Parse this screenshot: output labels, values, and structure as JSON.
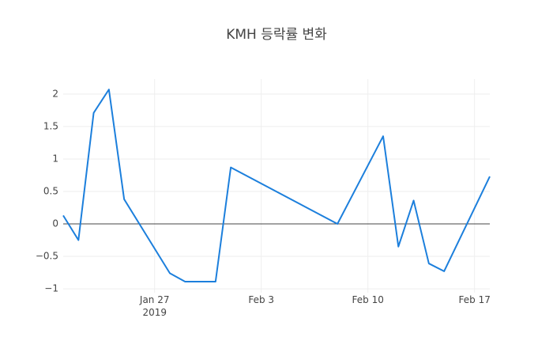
{
  "chart_data": {
    "type": "line",
    "title": "KMH 등락률 변화",
    "x": [
      "2019-01-21",
      "2019-01-22",
      "2019-01-23",
      "2019-01-24",
      "2019-01-25",
      "2019-01-28",
      "2019-01-29",
      "2019-01-30",
      "2019-01-31",
      "2019-02-01",
      "2019-02-08",
      "2019-02-11",
      "2019-02-12",
      "2019-02-13",
      "2019-02-14",
      "2019-02-15",
      "2019-02-18"
    ],
    "series": [
      {
        "name": "KMH",
        "color": "#1c7fdc",
        "values": [
          0.13,
          -0.25,
          1.71,
          2.07,
          0.38,
          -0.76,
          -0.89,
          -0.89,
          -0.89,
          0.87,
          0.0,
          1.35,
          -0.35,
          0.36,
          -0.61,
          -0.73,
          0.73
        ]
      }
    ],
    "xlim": [
      "2019-01-21",
      "2019-02-18"
    ],
    "xticks": [
      {
        "value": "2019-01-27",
        "label": "Jan 27\n2019"
      },
      {
        "value": "2019-02-03",
        "label": "Feb 3"
      },
      {
        "value": "2019-02-10",
        "label": "Feb 10"
      },
      {
        "value": "2019-02-17",
        "label": "Feb 17"
      }
    ],
    "ylim": [
      -1.06,
      2.23
    ],
    "yticks": [
      {
        "value": -1,
        "label": "−1"
      },
      {
        "value": -0.5,
        "label": "−0.5"
      },
      0,
      0.5,
      1,
      1.5,
      2
    ],
    "grid": true,
    "zeroline": true
  }
}
